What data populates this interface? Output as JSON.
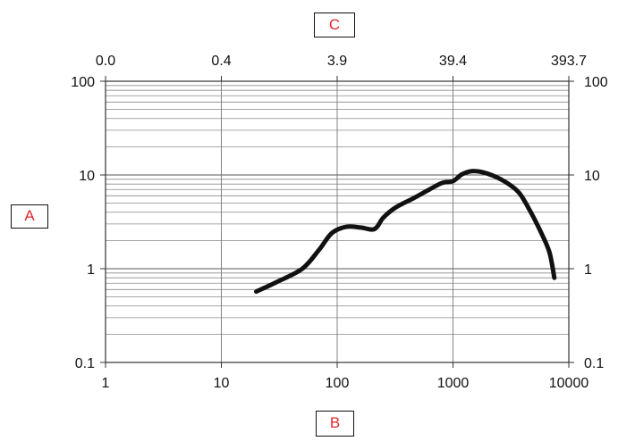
{
  "chart_data": {
    "type": "line",
    "x_scale": "log",
    "y_scale": "log",
    "xlim": [
      1,
      10000
    ],
    "ylim": [
      0.1,
      100
    ],
    "x_ticks": [
      1,
      10,
      100,
      1000,
      10000
    ],
    "x_tick_labels": [
      "1",
      "10",
      "100",
      "1000",
      "10000"
    ],
    "top_ticks": [
      1,
      10,
      100,
      1000,
      10000
    ],
    "top_tick_labels": [
      "0.0",
      "0.4",
      "3.9",
      "39.4",
      "393.7"
    ],
    "y_ticks": [
      0.1,
      1,
      10,
      100
    ],
    "y_tick_labels": [
      "0.1",
      "1",
      "10",
      "100"
    ],
    "right_tick_labels": [
      "0.1",
      "1",
      "10",
      "100"
    ],
    "ylabel": "A",
    "xlabel": "B",
    "top_xlabel": "C",
    "grid": true,
    "series": [
      {
        "color": "#111111",
        "x": [
          20,
          30,
          50,
          70,
          90,
          120,
          160,
          210,
          250,
          320,
          450,
          600,
          800,
          1000,
          1200,
          1500,
          2000,
          2800,
          3700,
          4600,
          5700,
          6800,
          7500
        ],
        "y": [
          0.57,
          0.72,
          1.0,
          1.6,
          2.4,
          2.8,
          2.75,
          2.65,
          3.5,
          4.5,
          5.6,
          6.8,
          8.2,
          8.6,
          10.2,
          11.0,
          10.3,
          8.5,
          6.5,
          4.2,
          2.5,
          1.5,
          0.8
        ]
      }
    ]
  }
}
